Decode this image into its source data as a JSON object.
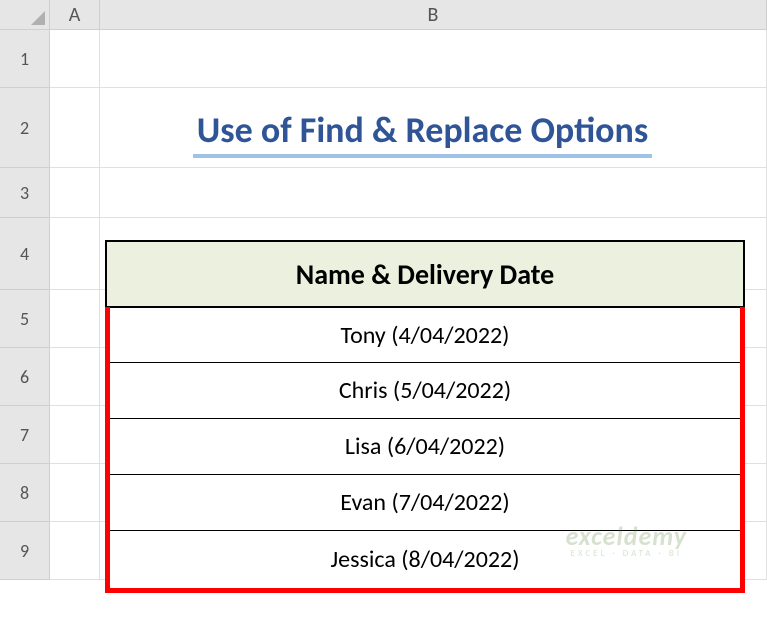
{
  "columns": {
    "corner": "",
    "A": "A",
    "B": "B"
  },
  "rows": [
    "1",
    "2",
    "3",
    "4",
    "5",
    "6",
    "7",
    "8",
    "9"
  ],
  "title": "Use of Find & Replace Options",
  "table": {
    "header": "Name & Delivery Date",
    "data": [
      "Tony  (4/04/2022)",
      "Chris  (5/04/2022)",
      "Lisa  (6/04/2022)",
      "Evan  (7/04/2022)",
      "Jessica  (8/04/2022)"
    ]
  },
  "watermark": {
    "main": "exceldemy",
    "sub": "EXCEL · DATA · BI"
  },
  "colors": {
    "title_color": "#2f5597",
    "title_underline": "#9dc3e6",
    "header_bg": "#ebf1de",
    "selection_border": "#ff0000",
    "grid_header_bg": "#e6e6e6"
  }
}
